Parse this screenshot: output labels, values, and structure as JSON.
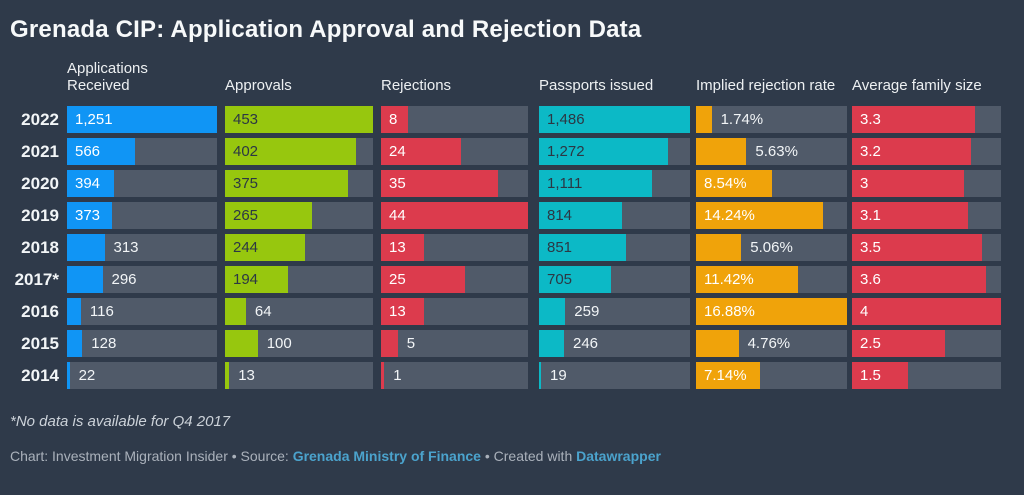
{
  "title": "Grenada CIP: Application Approval and Rejection Data",
  "colors": {
    "background": "#2f3a4a",
    "bar_track": "#505a69",
    "applications_blue": "#1095f5",
    "approvals_green": "#97c70e",
    "rejections_red": "#dc3b4d",
    "passports_cyan": "#0cb9c6",
    "rate_orange": "#f0a30a",
    "family_red": "#dc3b4d",
    "label_light": "#f2f5f7",
    "label_dark": "#2c3744",
    "link_blue": "#4ba3cd"
  },
  "columns": [
    {
      "id": "applications-received",
      "label": "Applications Received",
      "color": "#1095f5",
      "inside_text": "#ffffff"
    },
    {
      "id": "approvals",
      "label": "Approvals",
      "color": "#97c70e",
      "inside_text": "#2c3744"
    },
    {
      "id": "rejections",
      "label": "Rejections",
      "color": "#dc3b4d",
      "inside_text": "#ffffff"
    },
    {
      "id": "passports-issued",
      "label": "Passports issued",
      "color": "#0cb9c6",
      "inside_text": "#2c3744"
    },
    {
      "id": "implied-rejection-rate",
      "label": "Implied rejection rate",
      "color": "#f0a30a",
      "inside_text": "#ffffff"
    },
    {
      "id": "average-family-size",
      "label": "Average family size",
      "color": "#dc3b4d",
      "inside_text": "#ffffff"
    }
  ],
  "rows": [
    {
      "year": "2022",
      "cells": [
        {
          "label": "1,251",
          "value": 1251
        },
        {
          "label": "453",
          "value": 453
        },
        {
          "label": "8",
          "value": 8
        },
        {
          "label": "1,486",
          "value": 1486
        },
        {
          "label": "1.74%",
          "value": 1.74
        },
        {
          "label": "3.3",
          "value": 3.3
        }
      ]
    },
    {
      "year": "2021",
      "cells": [
        {
          "label": "566",
          "value": 566
        },
        {
          "label": "402",
          "value": 402
        },
        {
          "label": "24",
          "value": 24
        },
        {
          "label": "1,272",
          "value": 1272
        },
        {
          "label": "5.63%",
          "value": 5.63
        },
        {
          "label": "3.2",
          "value": 3.2
        }
      ]
    },
    {
      "year": "2020",
      "cells": [
        {
          "label": "394",
          "value": 394
        },
        {
          "label": "375",
          "value": 375
        },
        {
          "label": "35",
          "value": 35
        },
        {
          "label": "1,111",
          "value": 1111
        },
        {
          "label": "8.54%",
          "value": 8.54
        },
        {
          "label": "3",
          "value": 3
        }
      ]
    },
    {
      "year": "2019",
      "cells": [
        {
          "label": "373",
          "value": 373
        },
        {
          "label": "265",
          "value": 265
        },
        {
          "label": "44",
          "value": 44
        },
        {
          "label": "814",
          "value": 814
        },
        {
          "label": "14.24%",
          "value": 14.24
        },
        {
          "label": "3.1",
          "value": 3.1
        }
      ]
    },
    {
      "year": "2018",
      "cells": [
        {
          "label": "313",
          "value": 313
        },
        {
          "label": "244",
          "value": 244
        },
        {
          "label": "13",
          "value": 13
        },
        {
          "label": "851",
          "value": 851
        },
        {
          "label": "5.06%",
          "value": 5.06
        },
        {
          "label": "3.5",
          "value": 3.5
        }
      ]
    },
    {
      "year": "2017*",
      "cells": [
        {
          "label": "296",
          "value": 296
        },
        {
          "label": "194",
          "value": 194
        },
        {
          "label": "25",
          "value": 25
        },
        {
          "label": "705",
          "value": 705
        },
        {
          "label": "11.42%",
          "value": 11.42
        },
        {
          "label": "3.6",
          "value": 3.6
        }
      ]
    },
    {
      "year": "2016",
      "cells": [
        {
          "label": "116",
          "value": 116
        },
        {
          "label": "64",
          "value": 64
        },
        {
          "label": "13",
          "value": 13
        },
        {
          "label": "259",
          "value": 259
        },
        {
          "label": "16.88%",
          "value": 16.88
        },
        {
          "label": "4",
          "value": 4
        }
      ]
    },
    {
      "year": "2015",
      "cells": [
        {
          "label": "128",
          "value": 128
        },
        {
          "label": "100",
          "value": 100
        },
        {
          "label": "5",
          "value": 5
        },
        {
          "label": "246",
          "value": 246
        },
        {
          "label": "4.76%",
          "value": 4.76
        },
        {
          "label": "2.5",
          "value": 2.5
        }
      ]
    },
    {
      "year": "2014",
      "cells": [
        {
          "label": "22",
          "value": 22
        },
        {
          "label": "13",
          "value": 13
        },
        {
          "label": "1",
          "value": 1
        },
        {
          "label": "19",
          "value": 19
        },
        {
          "label": "7.14%",
          "value": 7.14
        },
        {
          "label": "1.5",
          "value": 1.5
        }
      ]
    }
  ],
  "footnote": "*No data is available for Q4 2017",
  "footer": {
    "prefix": "Chart: Investment Migration Insider • Source: ",
    "source_link": "Grenada Ministry of Finance",
    "middle": " • Created with ",
    "credit_link": "Datawrapper"
  },
  "chart_data": {
    "type": "bar",
    "title": "Grenada CIP: Application Approval and Rejection Data",
    "categories": [
      "2022",
      "2021",
      "2020",
      "2019",
      "2018",
      "2017*",
      "2016",
      "2015",
      "2014"
    ],
    "series": [
      {
        "name": "Applications Received",
        "values": [
          1251,
          566,
          394,
          373,
          313,
          296,
          116,
          128,
          22
        ]
      },
      {
        "name": "Approvals",
        "values": [
          453,
          402,
          375,
          265,
          244,
          194,
          64,
          100,
          13
        ]
      },
      {
        "name": "Rejections",
        "values": [
          8,
          24,
          35,
          44,
          13,
          25,
          13,
          5,
          1
        ]
      },
      {
        "name": "Passports issued",
        "values": [
          1486,
          1272,
          1111,
          814,
          851,
          705,
          259,
          246,
          19
        ]
      },
      {
        "name": "Implied rejection rate (%)",
        "values": [
          1.74,
          5.63,
          8.54,
          14.24,
          5.06,
          11.42,
          16.88,
          4.76,
          7.14
        ]
      },
      {
        "name": "Average family size",
        "values": [
          3.3,
          3.2,
          3,
          3.1,
          3.5,
          3.6,
          4,
          2.5,
          1.5
        ]
      }
    ],
    "orientation": "horizontal",
    "scaling": "each series scaled to its own max, bar length proportional within column",
    "legend_position": "column headers",
    "footnote": "*No data is available for Q4 2017"
  }
}
